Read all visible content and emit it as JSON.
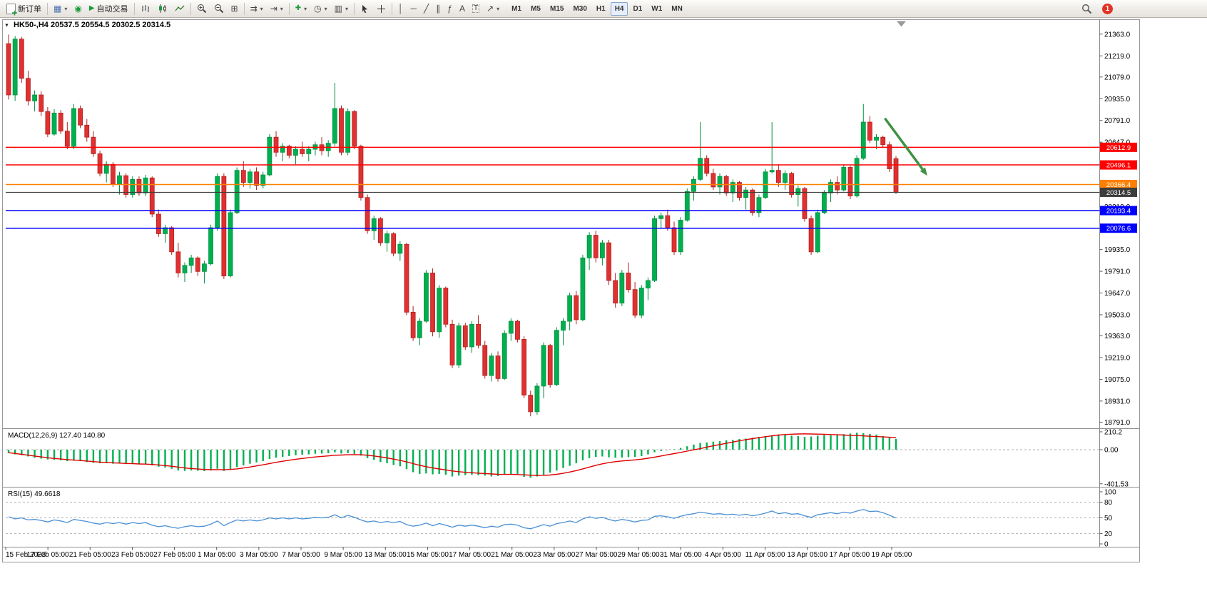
{
  "toolbar": {
    "new_order": "新订单",
    "algo_trading": "自动交易",
    "timeframes": [
      "M1",
      "M5",
      "M15",
      "M30",
      "H1",
      "H4",
      "D1",
      "W1",
      "MN"
    ],
    "active_timeframe": "H4",
    "notification_count": "1"
  },
  "icons": {
    "caret": "▾",
    "collapse": "▼",
    "chart_window": "▦",
    "community": "◉",
    "algo_play": "▶",
    "tile": "⊞",
    "autoscroll": "⇉",
    "shift": "⇥",
    "indicators": "✚",
    "clock": "◷",
    "template": "▥",
    "vline": "│",
    "hline": "─",
    "tline": "╱",
    "channel": "∥",
    "fibonacci": "ƒ",
    "text": "A",
    "label": "T",
    "arrows": "↗"
  },
  "chart_data": {
    "type": "candlestick",
    "symbol": "HK50-",
    "timeframe": "H4",
    "ohlc": {
      "open": 20537.5,
      "high": 20554.5,
      "low": 20302.5,
      "close": 20314.5
    },
    "colors": {
      "bull": "#00b050",
      "bull_stroke": "#008f3e",
      "bear": "#e03131",
      "bear_stroke": "#b02020",
      "macd_hist": "#00b050",
      "macd_signal": "#e00000",
      "rsi_line": "#4a8fd4",
      "price_line": "#3c3c3c",
      "arrow": "#3f9142",
      "frame": "#9a9a9a"
    },
    "y_axis": {
      "min": 18760,
      "max": 21400,
      "ticks": [
        21363.0,
        21219.0,
        21079.0,
        20935.0,
        20791.0,
        20647.0,
        20219.0,
        19935.0,
        19791.0,
        19647.0,
        19503.0,
        19363.0,
        19219.0,
        19075.0,
        18931.0,
        18791.0
      ]
    },
    "levels": [
      {
        "value": 20612.9,
        "label": "20612.9",
        "color": "#ff0000"
      },
      {
        "value": 20496.1,
        "label": "20496.1",
        "color": "#ff0000"
      },
      {
        "value": 20366.4,
        "label": "20366.4",
        "color": "#ff8000"
      },
      {
        "value": 20314.5,
        "label": "20314.5",
        "color": "#3c3c3c",
        "current": true
      },
      {
        "value": 20193.4,
        "label": "20193.4",
        "color": "#0000ff"
      },
      {
        "value": 20076.6,
        "label": "20076.6",
        "color": "#0000ff"
      }
    ],
    "annotation_arrow": {
      "from_index": 134.3,
      "from_price": 20805,
      "to_index": 140.8,
      "to_price": 20425
    },
    "x_axis_labels": [
      "15 Feb 2023",
      "17 Feb 05:00",
      "21 Feb 05:00",
      "23 Feb 05:00",
      "27 Feb 05:00",
      "1 Mar 05:00",
      "3 Mar 05:00",
      "7 Mar 05:00",
      "9 Mar 05:00",
      "13 Mar 05:00",
      "15 Mar 05:00",
      "17 Mar 05:00",
      "21 Mar 05:00",
      "23 Mar 05:00",
      "27 Mar 05:00",
      "29 Mar 05:00",
      "31 Mar 05:00",
      "4 Apr 05:00",
      "11 Apr 05:00",
      "13 Apr 05:00",
      "17 Apr 05:00",
      "19 Apr 05:00"
    ],
    "candles": [
      [
        21300,
        21360,
        20930,
        20960
      ],
      [
        20960,
        21350,
        20920,
        21330
      ],
      [
        21330,
        21345,
        21040,
        21070
      ],
      [
        21070,
        21120,
        20890,
        20920
      ],
      [
        20920,
        20990,
        20850,
        20960
      ],
      [
        20960,
        20985,
        20820,
        20850
      ],
      [
        20850,
        20880,
        20680,
        20700
      ],
      [
        20700,
        20865,
        20690,
        20840
      ],
      [
        20840,
        20860,
        20700,
        20720
      ],
      [
        20720,
        20780,
        20600,
        20620
      ],
      [
        20620,
        20900,
        20600,
        20870
      ],
      [
        20870,
        20890,
        20740,
        20760
      ],
      [
        20760,
        20800,
        20650,
        20680
      ],
      [
        20680,
        20720,
        20550,
        20570
      ],
      [
        20570,
        20590,
        20420,
        20440
      ],
      [
        20440,
        20520,
        20380,
        20500
      ],
      [
        20500,
        20515,
        20350,
        20370
      ],
      [
        20370,
        20450,
        20300,
        20425
      ],
      [
        20425,
        20440,
        20280,
        20300
      ],
      [
        20300,
        20420,
        20280,
        20400
      ],
      [
        20400,
        20420,
        20290,
        20310
      ],
      [
        20310,
        20430,
        20290,
        20410
      ],
      [
        20410,
        20420,
        20150,
        20170
      ],
      [
        20170,
        20200,
        20020,
        20040
      ],
      [
        20040,
        20100,
        19980,
        20080
      ],
      [
        20080,
        20090,
        19900,
        19920
      ],
      [
        19920,
        19980,
        19750,
        19780
      ],
      [
        19780,
        19850,
        19720,
        19830
      ],
      [
        19830,
        19900,
        19780,
        19880
      ],
      [
        19880,
        19890,
        19760,
        19790
      ],
      [
        19790,
        19860,
        19710,
        19840
      ],
      [
        19840,
        20100,
        19830,
        20080
      ],
      [
        20080,
        20440,
        20060,
        20420
      ],
      [
        20420,
        20440,
        19740,
        19760
      ],
      [
        19760,
        20200,
        19750,
        20180
      ],
      [
        20180,
        20480,
        20170,
        20460
      ],
      [
        20460,
        20520,
        20350,
        20380
      ],
      [
        20380,
        20470,
        20340,
        20450
      ],
      [
        20450,
        20480,
        20330,
        20360
      ],
      [
        20360,
        20450,
        20340,
        20430
      ],
      [
        20430,
        20700,
        20420,
        20680
      ],
      [
        20680,
        20720,
        20550,
        20580
      ],
      [
        20580,
        20640,
        20520,
        20620
      ],
      [
        20620,
        20630,
        20540,
        20560
      ],
      [
        20560,
        20620,
        20500,
        20600
      ],
      [
        20600,
        20650,
        20550,
        20570
      ],
      [
        20570,
        20620,
        20520,
        20600
      ],
      [
        20600,
        20650,
        20560,
        20630
      ],
      [
        20630,
        20680,
        20560,
        20590
      ],
      [
        20590,
        20660,
        20550,
        20640
      ],
      [
        20640,
        21040,
        20620,
        20870
      ],
      [
        20870,
        20890,
        20560,
        20580
      ],
      [
        20580,
        20870,
        20560,
        20850
      ],
      [
        20850,
        20860,
        20600,
        20620
      ],
      [
        20620,
        20630,
        20260,
        20280
      ],
      [
        20280,
        20300,
        20040,
        20060
      ],
      [
        20060,
        20160,
        20000,
        20140
      ],
      [
        20140,
        20150,
        19960,
        19980
      ],
      [
        19980,
        20060,
        19920,
        20040
      ],
      [
        20040,
        20050,
        19890,
        19910
      ],
      [
        19910,
        19990,
        19860,
        19970
      ],
      [
        19970,
        19980,
        19500,
        19520
      ],
      [
        19520,
        19560,
        19330,
        19350
      ],
      [
        19350,
        19480,
        19300,
        19460
      ],
      [
        19460,
        19800,
        19450,
        19780
      ],
      [
        19780,
        19810,
        19360,
        19390
      ],
      [
        19390,
        19700,
        19350,
        19680
      ],
      [
        19680,
        19690,
        19420,
        19440
      ],
      [
        19440,
        19470,
        19150,
        19170
      ],
      [
        19170,
        19450,
        19150,
        19430
      ],
      [
        19430,
        19450,
        19270,
        19290
      ],
      [
        19290,
        19460,
        19250,
        19440
      ],
      [
        19440,
        19500,
        19280,
        19300
      ],
      [
        19300,
        19330,
        19080,
        19100
      ],
      [
        19100,
        19250,
        19060,
        19230
      ],
      [
        19230,
        19260,
        19060,
        19080
      ],
      [
        19080,
        19400,
        19070,
        19380
      ],
      [
        19380,
        19480,
        19330,
        19460
      ],
      [
        19460,
        19470,
        19320,
        19340
      ],
      [
        19340,
        19360,
        18950,
        18970
      ],
      [
        18970,
        19000,
        18830,
        18860
      ],
      [
        18860,
        19050,
        18840,
        19030
      ],
      [
        19030,
        19320,
        18950,
        19300
      ],
      [
        19300,
        19310,
        19020,
        19040
      ],
      [
        19040,
        19420,
        19030,
        19400
      ],
      [
        19400,
        19480,
        19300,
        19460
      ],
      [
        19460,
        19650,
        19400,
        19630
      ],
      [
        19630,
        19660,
        19440,
        19470
      ],
      [
        19470,
        19900,
        19460,
        19880
      ],
      [
        19880,
        20050,
        19800,
        20030
      ],
      [
        20030,
        20060,
        19850,
        19880
      ],
      [
        19880,
        20000,
        19830,
        19980
      ],
      [
        19980,
        20000,
        19700,
        19730
      ],
      [
        19730,
        19780,
        19550,
        19580
      ],
      [
        19580,
        19800,
        19560,
        19780
      ],
      [
        19780,
        19850,
        19650,
        19670
      ],
      [
        19670,
        19720,
        19480,
        19500
      ],
      [
        19500,
        19700,
        19480,
        19680
      ],
      [
        19680,
        19750,
        19600,
        19730
      ],
      [
        19730,
        20160,
        19720,
        20140
      ],
      [
        20140,
        20180,
        20080,
        20160
      ],
      [
        20160,
        20200,
        20060,
        20080
      ],
      [
        20080,
        20120,
        19900,
        19920
      ],
      [
        19920,
        20150,
        19900,
        20130
      ],
      [
        20130,
        20340,
        20120,
        20320
      ],
      [
        20320,
        20420,
        20260,
        20400
      ],
      [
        20400,
        20780,
        20390,
        20540
      ],
      [
        20540,
        20560,
        20420,
        20440
      ],
      [
        20440,
        20470,
        20330,
        20350
      ],
      [
        20350,
        20440,
        20300,
        20420
      ],
      [
        20420,
        20430,
        20290,
        20310
      ],
      [
        20310,
        20400,
        20250,
        20380
      ],
      [
        20380,
        20390,
        20260,
        20280
      ],
      [
        20280,
        20350,
        20200,
        20330
      ],
      [
        20330,
        20340,
        20160,
        20180
      ],
      [
        20180,
        20300,
        20150,
        20280
      ],
      [
        20280,
        20470,
        20270,
        20450
      ],
      [
        20450,
        20780,
        20440,
        20460
      ],
      [
        20460,
        20500,
        20350,
        20380
      ],
      [
        20380,
        20460,
        20330,
        20440
      ],
      [
        20440,
        20450,
        20280,
        20300
      ],
      [
        20300,
        20360,
        20220,
        20340
      ],
      [
        20340,
        20350,
        20120,
        20140
      ],
      [
        20140,
        20160,
        19900,
        19920
      ],
      [
        19920,
        20200,
        19910,
        20180
      ],
      [
        20180,
        20330,
        20170,
        20310
      ],
      [
        20310,
        20400,
        20250,
        20380
      ],
      [
        20380,
        20420,
        20300,
        20330
      ],
      [
        20330,
        20500,
        20320,
        20480
      ],
      [
        20480,
        20490,
        20270,
        20290
      ],
      [
        20290,
        20560,
        20280,
        20540
      ],
      [
        20540,
        20900,
        20530,
        20780
      ],
      [
        20780,
        20820,
        20640,
        20660
      ],
      [
        20660,
        20700,
        20600,
        20680
      ],
      [
        20680,
        20690,
        20610,
        20630
      ],
      [
        20630,
        20650,
        20450,
        20470
      ],
      [
        20537.5,
        20554.5,
        20302.5,
        20314.5
      ]
    ],
    "macd": {
      "name": "MACD(12,26,9)",
      "values": "127.40 140.80",
      "range": [
        -420,
        235
      ],
      "scale": [
        {
          "label": "210.2",
          "value": 210.2
        },
        {
          "label": "0.00",
          "value": 0
        },
        {
          "label": "-401.53",
          "value": -401.53
        }
      ],
      "histogram": [
        -40,
        -55,
        -65,
        -80,
        -95,
        -105,
        -115,
        -120,
        -125,
        -135,
        -130,
        -135,
        -145,
        -155,
        -160,
        -158,
        -165,
        -162,
        -170,
        -168,
        -172,
        -170,
        -185,
        -200,
        -210,
        -225,
        -245,
        -250,
        -245,
        -248,
        -252,
        -245,
        -225,
        -250,
        -235,
        -205,
        -185,
        -165,
        -150,
        -135,
        -110,
        -95,
        -85,
        -75,
        -65,
        -60,
        -55,
        -48,
        -45,
        -42,
        -30,
        -45,
        -40,
        -50,
        -70,
        -100,
        -120,
        -145,
        -160,
        -180,
        -195,
        -230,
        -265,
        -285,
        -280,
        -290,
        -285,
        -295,
        -315,
        -305,
        -300,
        -295,
        -300,
        -305,
        -315,
        -310,
        -295,
        -290,
        -295,
        -320,
        -330,
        -315,
        -295,
        -270,
        -245,
        -215,
        -190,
        -160,
        -125,
        -100,
        -85,
        -80,
        -90,
        -95,
        -92,
        -88,
        -85,
        -75,
        -55,
        -30,
        -15,
        -5,
        5,
        20,
        40,
        60,
        80,
        85,
        95,
        100,
        110,
        115,
        125,
        130,
        140,
        150,
        160,
        170,
        180,
        175,
        165,
        160,
        150,
        155,
        165,
        172,
        168,
        175,
        182,
        190,
        200,
        195,
        185,
        178,
        160,
        140,
        127.4
      ],
      "signal": [
        -35,
        -45,
        -55,
        -65,
        -75,
        -85,
        -95,
        -103,
        -110,
        -117,
        -123,
        -128,
        -134,
        -140,
        -146,
        -150,
        -155,
        -158,
        -162,
        -165,
        -168,
        -170,
        -174,
        -180,
        -187,
        -195,
        -205,
        -215,
        -222,
        -228,
        -233,
        -235,
        -234,
        -236,
        -233,
        -226,
        -216,
        -204,
        -191,
        -178,
        -163,
        -149,
        -136,
        -124,
        -113,
        -103,
        -94,
        -86,
        -79,
        -73,
        -66,
        -63,
        -60,
        -58,
        -60,
        -66,
        -74,
        -85,
        -97,
        -111,
        -126,
        -144,
        -164,
        -184,
        -200,
        -215,
        -227,
        -238,
        -250,
        -259,
        -266,
        -271,
        -276,
        -281,
        -286,
        -290,
        -291,
        -291,
        -292,
        -296,
        -301,
        -303,
        -302,
        -298,
        -290,
        -278,
        -263,
        -246,
        -226,
        -205,
        -184,
        -166,
        -152,
        -141,
        -133,
        -126,
        -120,
        -112,
        -101,
        -88,
        -74,
        -60,
        -46,
        -32,
        -17,
        -2,
        12,
        30,
        45,
        60,
        75,
        90,
        105,
        118,
        130,
        142,
        153,
        163,
        172,
        178,
        182,
        185,
        186,
        185,
        183,
        181,
        178,
        175,
        172,
        169,
        166,
        162,
        158,
        154,
        150,
        146,
        140.8
      ]
    },
    "rsi": {
      "name": "RSI(15)",
      "value": "49.6618",
      "range": [
        0,
        100
      ],
      "levels": [
        80,
        50,
        20
      ],
      "scale": [
        {
          "label": "100",
          "value": 100
        },
        {
          "label": "80",
          "value": 80
        },
        {
          "label": "50",
          "value": 50
        },
        {
          "label": "20",
          "value": 20
        },
        {
          "label": "0",
          "value": 0
        }
      ],
      "values": [
        52,
        48,
        50,
        46,
        47,
        45,
        42,
        46,
        44,
        41,
        47,
        45,
        43,
        40,
        38,
        41,
        39,
        41,
        38,
        41,
        39,
        41,
        36,
        33,
        35,
        32,
        30,
        33,
        35,
        33,
        34,
        38,
        44,
        35,
        41,
        46,
        44,
        46,
        44,
        46,
        50,
        48,
        50,
        48,
        50,
        48,
        49,
        51,
        50,
        51,
        56,
        50,
        55,
        51,
        46,
        42,
        44,
        41,
        43,
        41,
        43,
        37,
        34,
        36,
        40,
        35,
        39,
        36,
        32,
        36,
        34,
        36,
        34,
        31,
        34,
        32,
        37,
        38,
        36,
        31,
        29,
        33,
        37,
        34,
        39,
        41,
        44,
        41,
        48,
        52,
        49,
        51,
        47,
        44,
        47,
        45,
        42,
        45,
        46,
        53,
        54,
        52,
        49,
        53,
        56,
        58,
        61,
        59,
        57,
        58,
        56,
        57,
        55,
        57,
        54,
        56,
        59,
        63,
        58,
        60,
        57,
        58,
        54,
        51,
        56,
        58,
        60,
        58,
        61,
        59,
        63,
        66,
        62,
        63,
        60,
        55,
        49.66
      ]
    }
  }
}
